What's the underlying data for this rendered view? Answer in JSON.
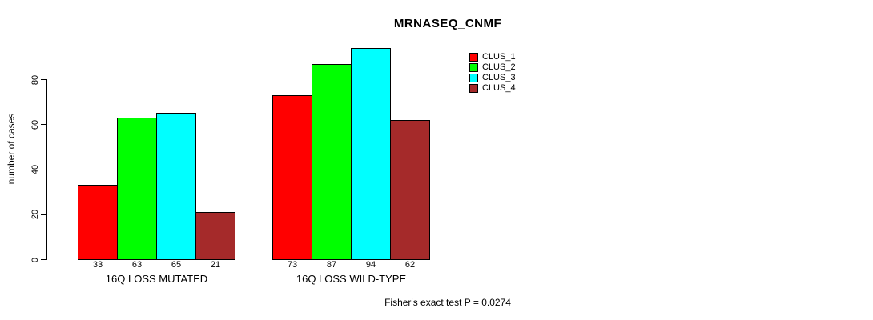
{
  "chart_data": {
    "type": "bar",
    "title": "MRNASEQ_CNMF",
    "ylabel": "number of cases",
    "xlabel": "",
    "categories": [
      "16Q LOSS MUTATED",
      "16Q LOSS WILD-TYPE"
    ],
    "series": [
      {
        "name": "CLUS_1",
        "color": "#FF0000",
        "values": [
          33,
          73
        ]
      },
      {
        "name": "CLUS_2",
        "color": "#00FF00",
        "values": [
          63,
          87
        ]
      },
      {
        "name": "CLUS_3",
        "color": "#00FFFF",
        "values": [
          65,
          94
        ]
      },
      {
        "name": "CLUS_4",
        "color": "#A52A2A",
        "values": [
          21,
          62
        ]
      }
    ],
    "y_ticks": [
      0,
      20,
      40,
      60,
      80
    ],
    "ylim": [
      0,
      94
    ],
    "grid": false,
    "legend_position": "top-right",
    "bar_value_labels_shown": true,
    "bar_border_color": "#000000",
    "background_color": "#FFFFFF"
  },
  "footer": {
    "caption": "Fisher's exact test P = 0.0274"
  }
}
